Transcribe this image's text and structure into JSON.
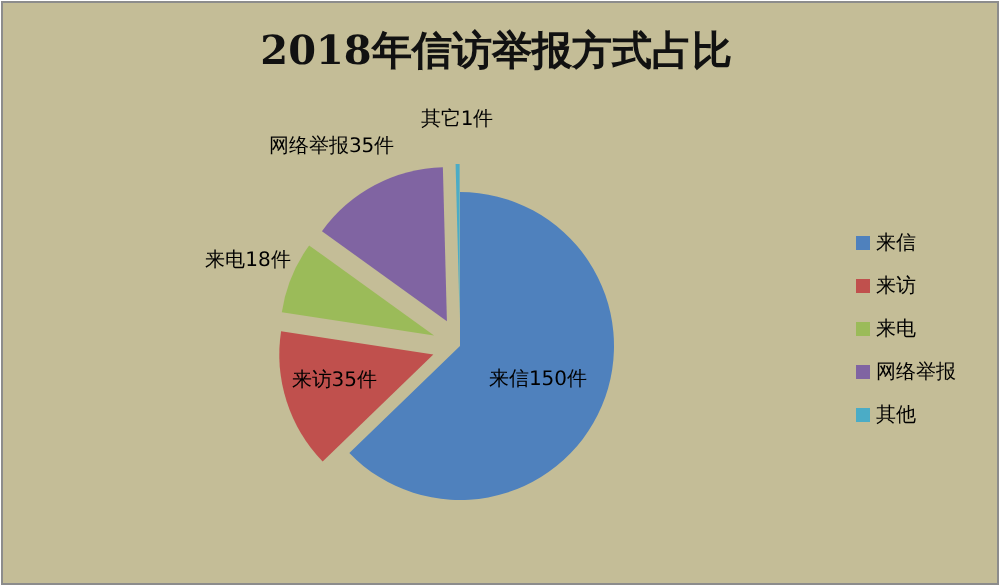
{
  "chart_data": {
    "type": "pie",
    "title": "2018年信访举报方式占比",
    "categories": [
      "来信",
      "来访",
      "来电",
      "网络举报",
      "其他"
    ],
    "values": [
      150,
      35,
      18,
      35,
      1
    ],
    "colors": [
      "#4f81bd",
      "#c0504d",
      "#9bbb59",
      "#8064a2",
      "#4bacc6"
    ],
    "value_labels": [
      "来信150件",
      "来访35件",
      "来电18件",
      "网络举报35件",
      "其它1件"
    ],
    "legend": "right"
  }
}
